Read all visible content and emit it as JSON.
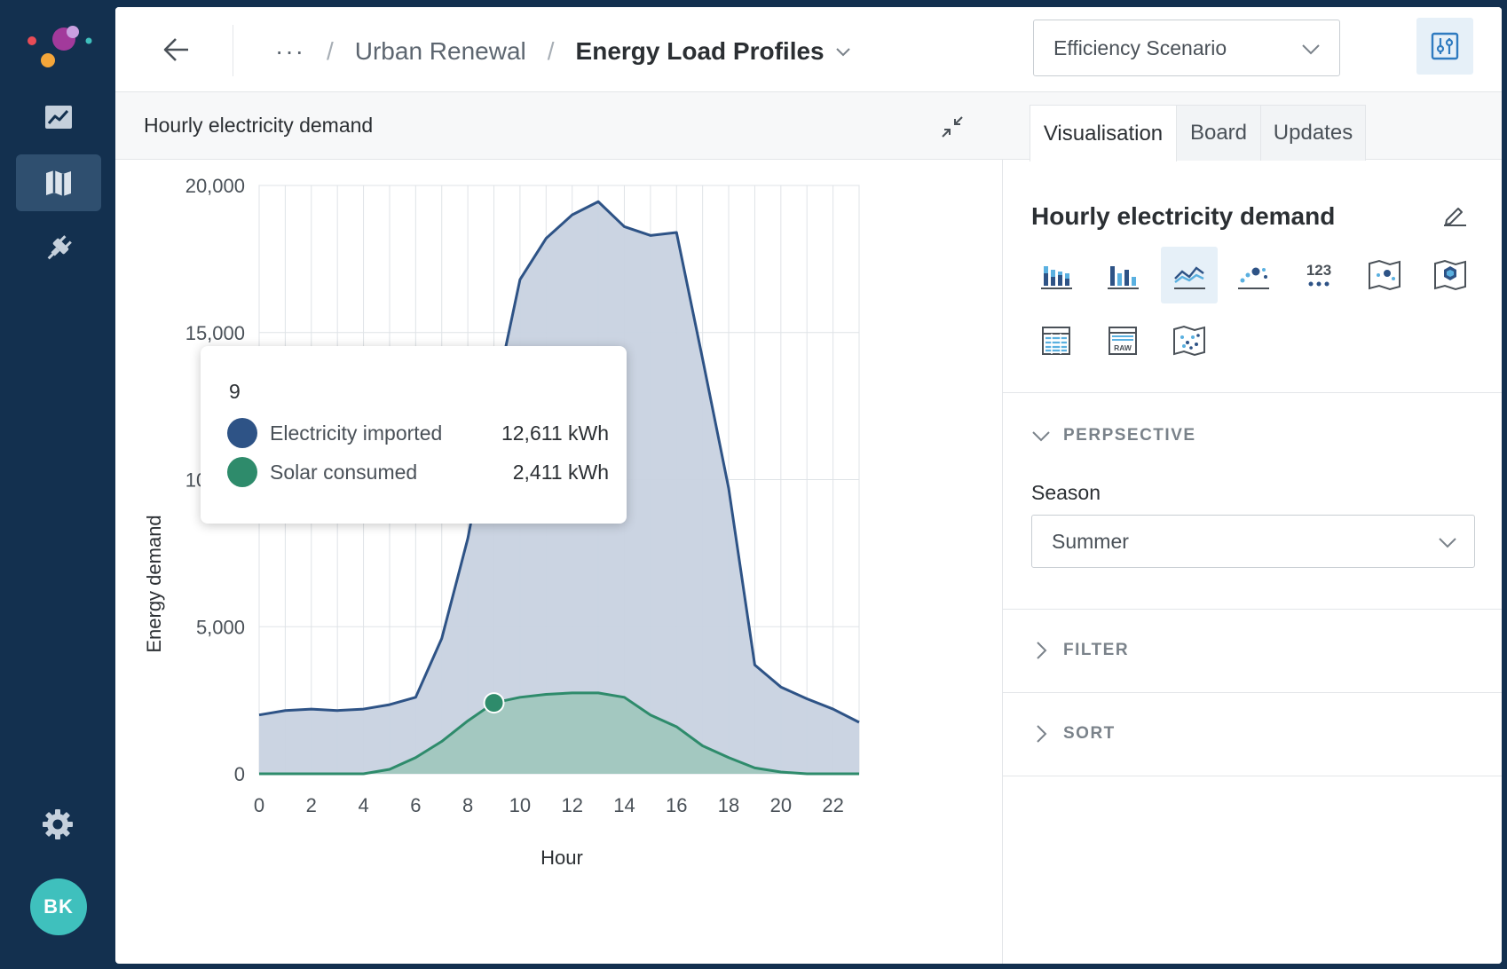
{
  "colors": {
    "sidebar_bg": "#13304f",
    "imported": "#2e5386",
    "imported_fill": "#c8d2e0",
    "solar": "#2e8b6b",
    "solar_fill": "#9fc6bd",
    "avatar": "#3fc0bd",
    "accent_bg": "#e6f0f8",
    "accent": "#2f7bc0"
  },
  "sidebar": {
    "items": [
      {
        "icon": "line-chart-icon"
      },
      {
        "icon": "map-icon",
        "active": true
      },
      {
        "icon": "plug-icon"
      }
    ],
    "settings_icon": "gear-icon",
    "avatar_initials": "BK"
  },
  "header": {
    "back_icon": "arrow-left-icon",
    "breadcrumb": {
      "ellipsis": "···",
      "separator": "/",
      "items": [
        "Urban Renewal",
        "Energy Load Profiles"
      ]
    },
    "scenario": {
      "value": "Efficiency Scenario"
    },
    "settings_toggle_icon": "sliders-icon"
  },
  "chart_panel": {
    "title": "Hourly electricity demand",
    "collapse_icon": "collapse-icon"
  },
  "tooltip": {
    "title": "9",
    "rows": [
      {
        "name": "Electricity imported",
        "value": "12,611 kWh"
      },
      {
        "name": "Solar consumed",
        "value": "2,411 kWh"
      }
    ]
  },
  "chart_data": {
    "type": "area",
    "xlabel": "Hour",
    "ylabel": "Energy demand",
    "x": [
      0,
      1,
      2,
      3,
      4,
      5,
      6,
      7,
      8,
      9,
      10,
      11,
      12,
      13,
      14,
      15,
      16,
      17,
      18,
      19,
      20,
      21,
      22,
      23
    ],
    "xlim": [
      0,
      23
    ],
    "ylim": [
      0,
      20000
    ],
    "x_ticks": [
      "0",
      "2",
      "4",
      "6",
      "8",
      "10",
      "12",
      "14",
      "16",
      "18",
      "20",
      "22"
    ],
    "y_ticks": [
      "0",
      "5,000",
      "10,000",
      "15,000",
      "20,000"
    ],
    "grid": true,
    "series": [
      {
        "name": "Electricity imported",
        "values": [
          2000,
          2150,
          2200,
          2150,
          2200,
          2350,
          2600,
          4600,
          8000,
          12611,
          16800,
          18200,
          19000,
          19450,
          18600,
          18300,
          18400,
          14100,
          9700,
          3700,
          2950,
          2550,
          2200,
          1750
        ]
      },
      {
        "name": "Solar consumed",
        "values": [
          0,
          0,
          0,
          0,
          0,
          150,
          550,
          1100,
          1800,
          2411,
          2600,
          2700,
          2750,
          2750,
          2600,
          2000,
          1600,
          950,
          550,
          200,
          60,
          0,
          0,
          0
        ]
      }
    ],
    "highlight_x": 9
  },
  "right_panel": {
    "tabs": [
      {
        "label": "Visualisation",
        "active": true
      },
      {
        "label": "Board"
      },
      {
        "label": "Updates"
      }
    ],
    "title": "Hourly electricity demand",
    "edit_icon": "pencil-icon",
    "viz_types": [
      {
        "icon": "stacked-bar-icon"
      },
      {
        "icon": "bar-chart-icon"
      },
      {
        "icon": "line-chart-icon",
        "active": true
      },
      {
        "icon": "scatter-icon"
      },
      {
        "icon": "number-icon",
        "text": "123"
      },
      {
        "icon": "map-point-icon"
      },
      {
        "icon": "map-hexbin-icon"
      },
      {
        "icon": "table-icon"
      },
      {
        "icon": "raw-table-icon",
        "text": "RAW"
      },
      {
        "icon": "map-dots-icon"
      }
    ],
    "sections": {
      "perspective": "PERPSECTIVE",
      "filter": "FILTER",
      "sort": "SORT"
    },
    "season": {
      "label": "Season",
      "value": "Summer"
    }
  }
}
